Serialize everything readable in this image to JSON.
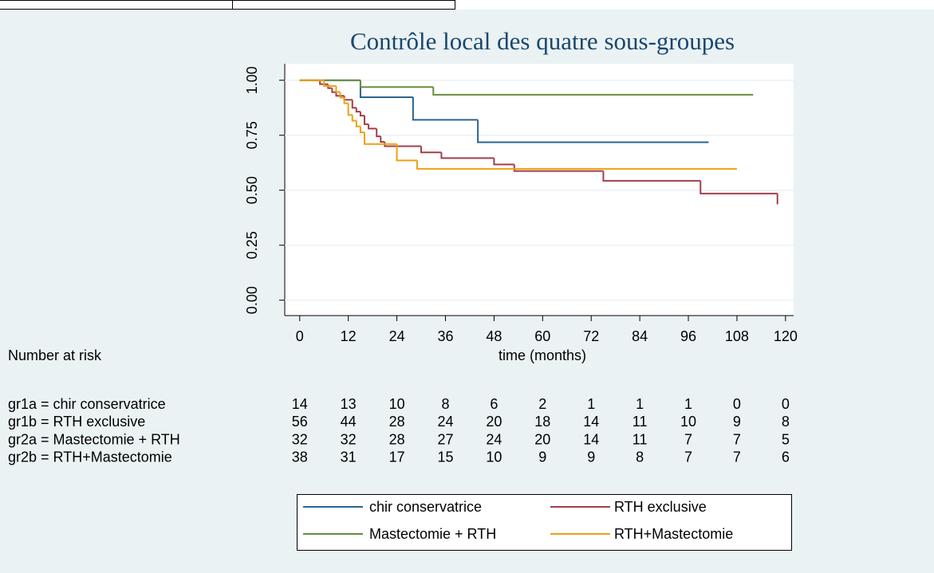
{
  "chart_data": {
    "type": "step",
    "title": "Contrôle local des quatre sous-groupes",
    "x_label": "time (months)",
    "xlim": [
      -3.7,
      122
    ],
    "ylim": [
      -0.07,
      1.075
    ],
    "xticks": [
      0,
      12,
      24,
      36,
      48,
      60,
      72,
      84,
      96,
      108,
      120
    ],
    "yticks": [
      {
        "value": 0,
        "label": "0.00"
      },
      {
        "value": 0.25,
        "label": "0.25"
      },
      {
        "value": 0.5,
        "label": "0.50"
      },
      {
        "value": 0.75,
        "label": "0.75"
      },
      {
        "value": 1,
        "label": "1.00"
      }
    ],
    "grid": true,
    "series": [
      {
        "name": "chir conservatrice",
        "color": "#2a6593",
        "x": [
          0,
          15,
          28,
          44,
          101
        ],
        "values": [
          1,
          0.923,
          0.82,
          0.718,
          0.718
        ]
      },
      {
        "name": "RTH exclusive",
        "color": "#a23f4a",
        "x": [
          0,
          5,
          7,
          8,
          9,
          11,
          13,
          14,
          15,
          16,
          17,
          19,
          20,
          21,
          30,
          35,
          48,
          53,
          75,
          99,
          118
        ],
        "values": [
          1,
          0.982,
          0.964,
          0.946,
          0.929,
          0.911,
          0.875,
          0.857,
          0.839,
          0.8,
          0.78,
          0.745,
          0.72,
          0.7,
          0.672,
          0.646,
          0.617,
          0.587,
          0.543,
          0.485,
          0.436
        ]
      },
      {
        "name": "Mastectomie + RTH",
        "color": "#668e3c",
        "x": [
          0,
          15,
          33,
          112
        ],
        "values": [
          1,
          0.969,
          0.934,
          0.934
        ]
      },
      {
        "name": "RTH+Mastectomie",
        "color": "#eea112",
        "x": [
          0,
          6,
          9,
          10,
          11,
          12,
          13,
          14,
          15,
          16,
          24,
          29,
          108
        ],
        "values": [
          1,
          0.974,
          0.947,
          0.921,
          0.895,
          0.842,
          0.816,
          0.79,
          0.763,
          0.71,
          0.635,
          0.597,
          0.597
        ]
      }
    ]
  },
  "risk_table": {
    "title": "Number at risk",
    "rows": [
      {
        "label": "gr1a = chir conservatrice",
        "counts": [
          "14",
          "13",
          "10",
          "8",
          "6",
          "2",
          "1",
          "1",
          "1",
          "0",
          "0"
        ]
      },
      {
        "label": "gr1b = RTH exclusive",
        "counts": [
          "56",
          "44",
          "28",
          "24",
          "20",
          "18",
          "14",
          "11",
          "10",
          "9",
          "8"
        ]
      },
      {
        "label": "gr2a = Mastectomie + RTH",
        "counts": [
          "32",
          "32",
          "28",
          "27",
          "24",
          "20",
          "14",
          "11",
          "7",
          "7",
          "5"
        ]
      },
      {
        "label": "gr2b = RTH+Mastectomie",
        "counts": [
          "38",
          "31",
          "17",
          "15",
          "10",
          "9",
          "9",
          "8",
          "7",
          "7",
          "6"
        ]
      }
    ]
  }
}
